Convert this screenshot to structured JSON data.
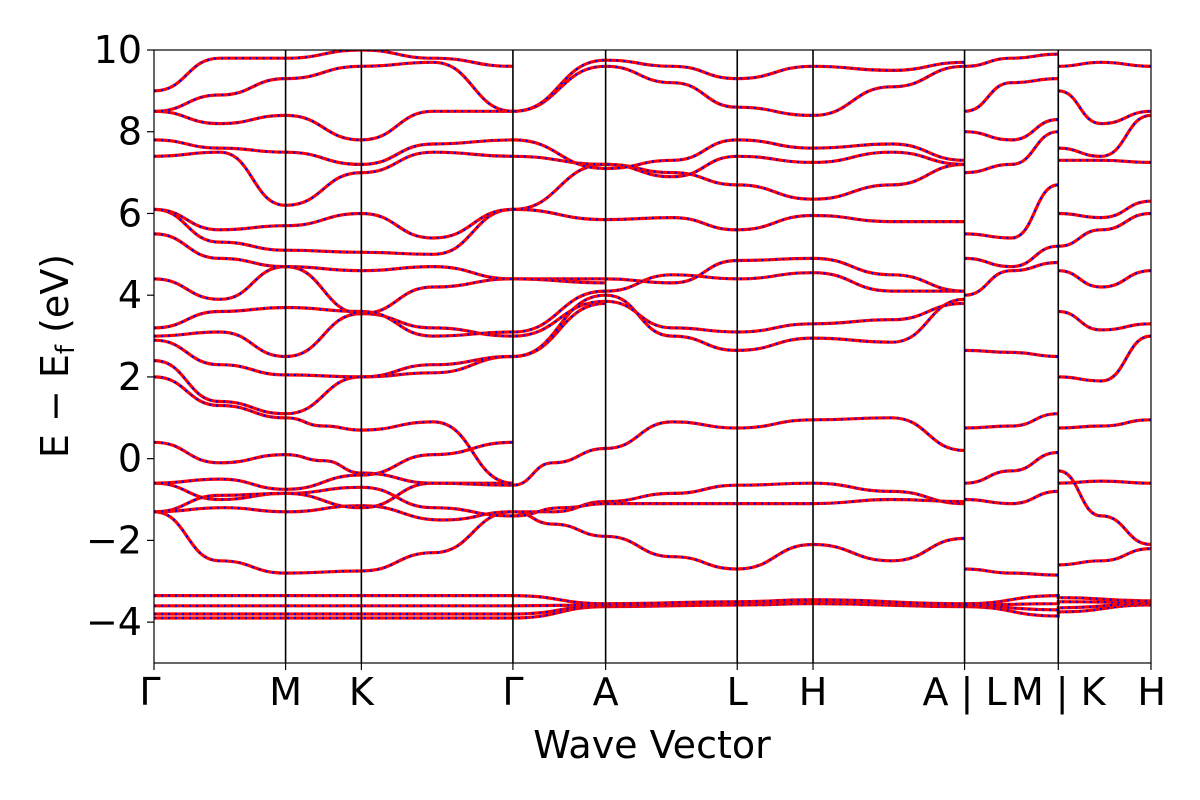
{
  "chart_data": {
    "type": "line",
    "title": "",
    "xlabel": "Wave Vector",
    "ylabel": "E − E",
    "ylabel_sub": "f",
    "ylabel_unit": " (eV)",
    "ylim": [
      -5,
      10
    ],
    "yticks": [
      -4,
      -2,
      0,
      2,
      4,
      6,
      8,
      10
    ],
    "ytick_labels": [
      "−4",
      "−2",
      "0",
      "2",
      "4",
      "6",
      "8",
      "10"
    ],
    "xlim": [
      0,
      1
    ],
    "kpoints": [
      {
        "x": 0.0,
        "label": "Γ"
      },
      {
        "x": 0.132,
        "label": "M"
      },
      {
        "x": 0.208,
        "label": "K"
      },
      {
        "x": 0.36,
        "label": "Γ"
      },
      {
        "x": 0.453,
        "label": "A"
      },
      {
        "x": 0.585,
        "label": "L"
      },
      {
        "x": 0.661,
        "label": "H"
      },
      {
        "x": 0.813,
        "label": "A | L"
      },
      {
        "x": 0.907,
        "label": "M | K"
      },
      {
        "x": 1.0,
        "label": "H"
      }
    ],
    "grid": false,
    "colors": {
      "band_main": "#ff0000",
      "band_overlay": "#0000ff",
      "vline": "#000000"
    },
    "bands": [
      {
        "name": "",
        "x": [
          0,
          0.132,
          0.208,
          0.36,
          0.453,
          0.585,
          0.661,
          0.813,
          0.813,
          0.907,
          0.907,
          1.0
        ],
        "y": [
          -3.9,
          -3.9,
          -3.9,
          -3.9,
          -3.62,
          -3.58,
          -3.55,
          -3.62,
          -3.62,
          -3.85,
          -3.75,
          -3.58
        ]
      },
      {
        "name": "",
        "x": [
          0,
          0.132,
          0.208,
          0.36,
          0.453,
          0.585,
          0.661,
          0.813,
          0.813,
          0.907,
          0.907,
          1.0
        ],
        "y": [
          -3.8,
          -3.8,
          -3.8,
          -3.8,
          -3.6,
          -3.55,
          -3.5,
          -3.6,
          -3.6,
          -3.7,
          -3.65,
          -3.55
        ]
      },
      {
        "name": "",
        "x": [
          0,
          0.132,
          0.208,
          0.36,
          0.453,
          0.585,
          0.661,
          0.813,
          0.813,
          0.907,
          0.907,
          1.0
        ],
        "y": [
          -3.6,
          -3.6,
          -3.6,
          -3.6,
          -3.58,
          -3.52,
          -3.48,
          -3.58,
          -3.58,
          -3.55,
          -3.5,
          -3.52
        ]
      },
      {
        "name": "",
        "x": [
          0,
          0.132,
          0.208,
          0.36,
          0.453,
          0.585,
          0.661,
          0.813,
          0.813,
          0.907,
          0.907,
          1.0
        ],
        "y": [
          -3.35,
          -3.35,
          -3.35,
          -3.35,
          -3.55,
          -3.5,
          -3.45,
          -3.55,
          -3.55,
          -3.35,
          -3.4,
          -3.48
        ]
      },
      {
        "name": "",
        "x": [
          0,
          0.066,
          0.132,
          0.208,
          0.28,
          0.36,
          0.4,
          0.453,
          0.52,
          0.585,
          0.661,
          0.74,
          0.813
        ],
        "y": [
          -1.3,
          -2.5,
          -2.8,
          -2.75,
          -2.3,
          -1.3,
          -1.6,
          -1.9,
          -2.4,
          -2.7,
          -2.1,
          -2.5,
          -1.95
        ]
      },
      {
        "name": "",
        "x": [
          0,
          0.07,
          0.132,
          0.208,
          0.29,
          0.36,
          0.4,
          0.453,
          0.52,
          0.585,
          0.661,
          0.74,
          0.813
        ],
        "y": [
          -1.3,
          -1.2,
          -1.3,
          -1.15,
          -1.5,
          -1.3,
          -1.3,
          -1.05,
          -0.85,
          -0.65,
          -0.6,
          -0.8,
          -1.1
        ]
      },
      {
        "name": "",
        "x": [
          0,
          0.066,
          0.132,
          0.208,
          0.28,
          0.36,
          0.41,
          0.453,
          0.52,
          0.585,
          0.661,
          0.74,
          0.813
        ],
        "y": [
          -0.6,
          -1.0,
          -0.85,
          -0.7,
          -1.2,
          -1.4,
          -1.2,
          -1.1,
          -1.1,
          -1.1,
          -1.1,
          -1.0,
          -1.05
        ]
      },
      {
        "name": "",
        "x": [
          0,
          0.066,
          0.132,
          0.208,
          0.28,
          0.36
        ],
        "y": [
          -1.3,
          -0.9,
          -0.85,
          -1.2,
          -0.6,
          -0.6
        ]
      },
      {
        "name": "",
        "x": [
          0,
          0.066,
          0.132,
          0.17,
          0.208,
          0.28,
          0.36,
          0.4,
          0.453,
          0.52,
          0.585,
          0.661,
          0.74,
          0.813
        ],
        "y": [
          0.4,
          -0.1,
          0.1,
          -0.05,
          -0.35,
          -0.6,
          -0.65,
          -0.1,
          0.25,
          0.9,
          0.75,
          0.95,
          1.0,
          0.2
        ]
      },
      {
        "name": "",
        "x": [
          0,
          0.066,
          0.132,
          0.208,
          0.28,
          0.36
        ],
        "y": [
          -0.6,
          -0.5,
          -0.75,
          -0.4,
          0.1,
          0.4
        ]
      },
      {
        "name": "",
        "x": [
          0,
          0.066,
          0.132,
          0.17,
          0.208,
          0.28,
          0.36
        ],
        "y": [
          2.0,
          1.3,
          1.0,
          0.8,
          0.7,
          0.9,
          -0.6
        ]
      },
      {
        "name": "",
        "x": [
          0,
          0.066,
          0.132,
          0.208,
          0.28,
          0.36,
          0.453
        ],
        "y": [
          2.4,
          1.4,
          1.1,
          2.0,
          2.1,
          2.5,
          3.8
        ]
      },
      {
        "name": "",
        "x": [
          0,
          0.066,
          0.132,
          0.208,
          0.28,
          0.36,
          0.453,
          0.52,
          0.585,
          0.661,
          0.74,
          0.813
        ],
        "y": [
          2.9,
          2.3,
          2.05,
          2.0,
          2.3,
          2.5,
          4.0,
          3.0,
          2.65,
          2.95,
          2.85,
          3.9
        ]
      },
      {
        "name": "",
        "x": [
          0,
          0.066,
          0.132,
          0.208,
          0.28,
          0.36,
          0.453,
          0.52,
          0.585,
          0.661,
          0.74,
          0.813
        ],
        "y": [
          3.0,
          3.1,
          2.5,
          3.55,
          3.2,
          3.0,
          3.85,
          3.2,
          3.1,
          3.3,
          3.4,
          3.8
        ]
      },
      {
        "name": "",
        "x": [
          0,
          0.066,
          0.132,
          0.208,
          0.28,
          0.36,
          0.453,
          0.52,
          0.585,
          0.661,
          0.74,
          0.813
        ],
        "y": [
          3.2,
          3.6,
          3.7,
          3.6,
          3.0,
          3.1,
          4.1,
          4.5,
          4.4,
          4.55,
          4.1,
          4.1
        ]
      },
      {
        "name": "",
        "x": [
          0,
          0.066,
          0.132,
          0.208,
          0.28,
          0.36,
          0.453,
          0.52,
          0.585,
          0.661,
          0.74,
          0.813
        ],
        "y": [
          4.4,
          3.9,
          4.7,
          3.55,
          4.2,
          4.4,
          4.4,
          4.3,
          4.85,
          4.9,
          4.5,
          4.1
        ]
      },
      {
        "name": "",
        "x": [
          0,
          0.066,
          0.132,
          0.208,
          0.28,
          0.36,
          0.453
        ],
        "y": [
          5.5,
          4.9,
          4.7,
          4.6,
          4.7,
          4.4,
          4.3
        ]
      },
      {
        "name": "",
        "x": [
          0,
          0.066,
          0.132,
          0.208,
          0.28,
          0.36,
          0.453,
          0.52,
          0.585,
          0.661,
          0.74,
          0.813
        ],
        "y": [
          6.1,
          5.3,
          5.1,
          5.05,
          5.0,
          6.1,
          5.85,
          5.9,
          5.6,
          5.95,
          5.8,
          5.8
        ]
      },
      {
        "name": "",
        "x": [
          0,
          0.066,
          0.132,
          0.208,
          0.28,
          0.36,
          0.453,
          0.52,
          0.585,
          0.661,
          0.74,
          0.813
        ],
        "y": [
          6.1,
          5.6,
          5.7,
          6.0,
          5.4,
          6.1,
          7.2,
          7.0,
          6.7,
          6.35,
          6.7,
          7.2
        ]
      },
      {
        "name": "",
        "x": [
          0,
          0.066,
          0.132,
          0.208,
          0.28,
          0.36,
          0.453,
          0.52,
          0.585,
          0.661,
          0.74,
          0.813
        ],
        "y": [
          7.4,
          7.5,
          6.2,
          7.0,
          7.5,
          7.4,
          7.2,
          6.9,
          7.4,
          7.25,
          7.5,
          7.2
        ]
      },
      {
        "name": "",
        "x": [
          0,
          0.066,
          0.132,
          0.208,
          0.28,
          0.36,
          0.453,
          0.52,
          0.585,
          0.661,
          0.74,
          0.813
        ],
        "y": [
          7.8,
          7.6,
          7.5,
          7.2,
          7.7,
          7.8,
          7.1,
          7.3,
          7.8,
          7.6,
          7.7,
          7.3
        ]
      },
      {
        "name": "",
        "x": [
          0,
          0.066,
          0.132,
          0.208,
          0.28,
          0.36,
          0.453,
          0.52,
          0.585,
          0.661,
          0.74,
          0.813
        ],
        "y": [
          8.5,
          8.2,
          8.4,
          7.8,
          8.5,
          8.5,
          9.6,
          9.2,
          8.6,
          8.4,
          9.1,
          9.6
        ]
      },
      {
        "name": "",
        "x": [
          0,
          0.066,
          0.132,
          0.208,
          0.28,
          0.36,
          0.453,
          0.52,
          0.585,
          0.661,
          0.74,
          0.813
        ],
        "y": [
          8.5,
          8.9,
          9.3,
          9.6,
          9.7,
          8.5,
          9.75,
          9.6,
          9.3,
          9.6,
          9.5,
          9.7
        ]
      },
      {
        "name": "",
        "x": [
          0,
          0.066,
          0.132,
          0.208,
          0.28,
          0.36
        ],
        "y": [
          9.0,
          9.8,
          9.8,
          10.0,
          9.8,
          9.6
        ]
      },
      {
        "name": "",
        "x": [
          0.813,
          0.86,
          0.907
        ],
        "y": [
          -2.7,
          -2.8,
          -2.85
        ]
      },
      {
        "name": "",
        "x": [
          0.813,
          0.86,
          0.907
        ],
        "y": [
          -1.0,
          -1.1,
          -0.8
        ]
      },
      {
        "name": "",
        "x": [
          0.813,
          0.86,
          0.907
        ],
        "y": [
          -0.6,
          -0.3,
          0.15
        ]
      },
      {
        "name": "",
        "x": [
          0.813,
          0.86,
          0.907
        ],
        "y": [
          0.75,
          0.8,
          1.1
        ]
      },
      {
        "name": "",
        "x": [
          0.813,
          0.86,
          0.907
        ],
        "y": [
          2.65,
          2.6,
          2.5
        ]
      },
      {
        "name": "",
        "x": [
          0.813,
          0.86,
          0.907
        ],
        "y": [
          4.0,
          4.6,
          4.8
        ]
      },
      {
        "name": "",
        "x": [
          0.813,
          0.86,
          0.907
        ],
        "y": [
          4.9,
          4.7,
          5.2
        ]
      },
      {
        "name": "",
        "x": [
          0.813,
          0.86,
          0.907
        ],
        "y": [
          5.5,
          5.4,
          6.7
        ]
      },
      {
        "name": "",
        "x": [
          0.813,
          0.86,
          0.907
        ],
        "y": [
          7.0,
          7.2,
          8.0
        ]
      },
      {
        "name": "",
        "x": [
          0.813,
          0.86,
          0.907
        ],
        "y": [
          8.0,
          7.8,
          8.3
        ]
      },
      {
        "name": "",
        "x": [
          0.813,
          0.86,
          0.907
        ],
        "y": [
          8.5,
          9.2,
          9.3
        ]
      },
      {
        "name": "",
        "x": [
          0.813,
          0.86,
          0.907
        ],
        "y": [
          9.6,
          9.8,
          9.9
        ]
      },
      {
        "name": "",
        "x": [
          0.907,
          0.95,
          1.0
        ],
        "y": [
          -2.6,
          -2.5,
          -2.2
        ]
      },
      {
        "name": "",
        "x": [
          0.907,
          0.95,
          1.0
        ],
        "y": [
          -0.6,
          -0.55,
          -0.6
        ]
      },
      {
        "name": "",
        "x": [
          0.907,
          0.95,
          1.0
        ],
        "y": [
          -0.3,
          -1.4,
          -2.1
        ]
      },
      {
        "name": "",
        "x": [
          0.907,
          0.95,
          1.0
        ],
        "y": [
          0.75,
          0.8,
          0.95
        ]
      },
      {
        "name": "",
        "x": [
          0.907,
          0.95,
          1.0
        ],
        "y": [
          2.0,
          1.9,
          3.0
        ]
      },
      {
        "name": "",
        "x": [
          0.907,
          0.95,
          1.0
        ],
        "y": [
          3.6,
          3.15,
          3.3
        ]
      },
      {
        "name": "",
        "x": [
          0.907,
          0.95,
          1.0
        ],
        "y": [
          4.6,
          4.2,
          4.6
        ]
      },
      {
        "name": "",
        "x": [
          0.907,
          0.95,
          1.0
        ],
        "y": [
          5.2,
          5.6,
          6.0
        ]
      },
      {
        "name": "",
        "x": [
          0.907,
          0.95,
          1.0
        ],
        "y": [
          6.0,
          5.9,
          6.3
        ]
      },
      {
        "name": "",
        "x": [
          0.907,
          0.95,
          1.0
        ],
        "y": [
          7.3,
          7.3,
          7.25
        ]
      },
      {
        "name": "",
        "x": [
          0.907,
          0.95,
          1.0
        ],
        "y": [
          7.6,
          7.4,
          8.4
        ]
      },
      {
        "name": "",
        "x": [
          0.907,
          0.95,
          1.0
        ],
        "y": [
          9.0,
          8.2,
          8.5
        ]
      },
      {
        "name": "",
        "x": [
          0.907,
          0.95,
          1.0
        ],
        "y": [
          9.6,
          9.7,
          9.6
        ]
      }
    ]
  }
}
